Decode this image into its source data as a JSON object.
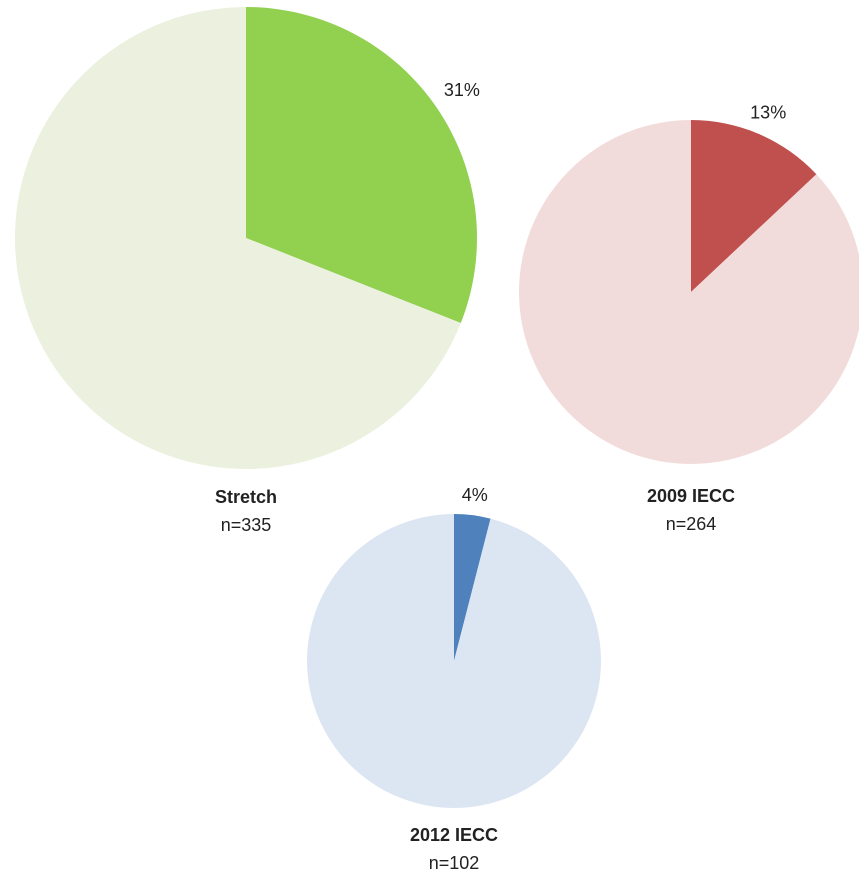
{
  "chart_data": [
    {
      "type": "pie",
      "title": "Stretch",
      "subtitle": "n=335",
      "categories": [
        null,
        null
      ],
      "values": [
        31,
        69
      ],
      "value_labels": [
        "31%",
        null
      ],
      "colors": [
        "#92d050",
        "#ebf1de"
      ]
    },
    {
      "type": "pie",
      "title": "2009 IECC",
      "subtitle": "n=264",
      "categories": [
        null,
        null
      ],
      "values": [
        13,
        87
      ],
      "value_labels": [
        "13%",
        null
      ],
      "colors": [
        "#c0504d",
        "#f2dcdb"
      ]
    },
    {
      "type": "pie",
      "title": "2012 IECC",
      "subtitle": "n=102",
      "categories": [
        null,
        null
      ],
      "values": [
        4,
        96
      ],
      "value_labels": [
        "4%",
        null
      ],
      "colors": [
        "#4f81bd",
        "#dce6f2"
      ]
    }
  ]
}
